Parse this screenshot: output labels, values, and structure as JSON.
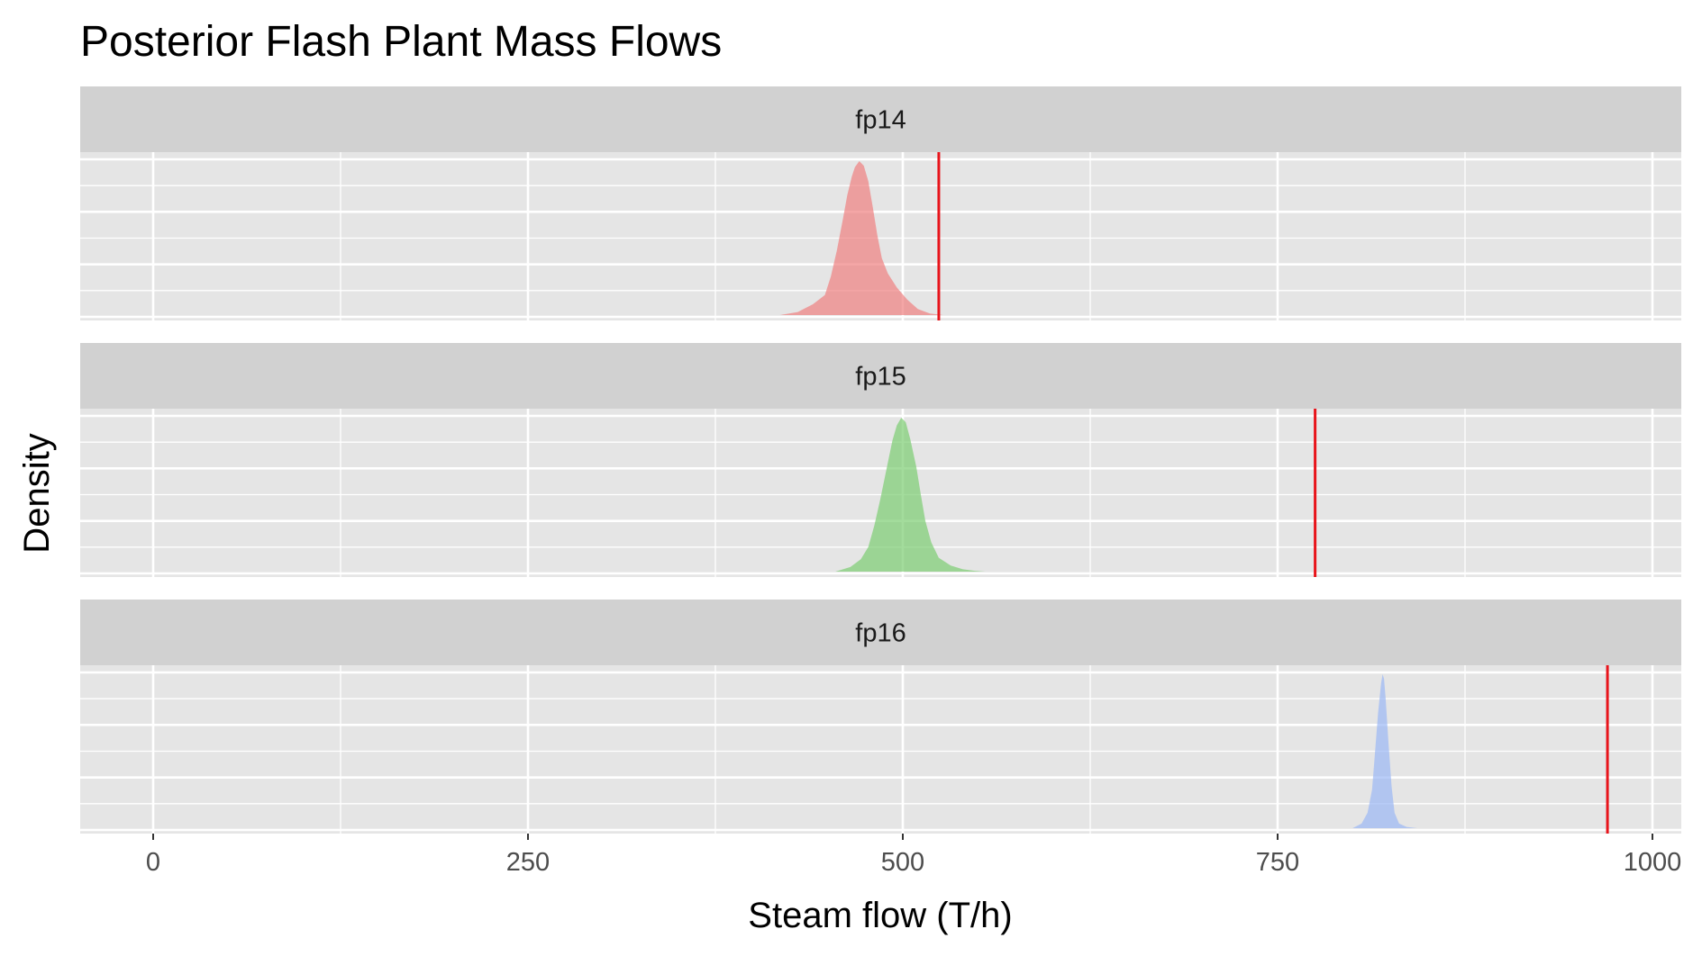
{
  "chart_data": {
    "type": "area",
    "title": "Posterior Flash Plant Mass Flows",
    "xlabel": "Steam flow (T/h)",
    "ylabel": "Density",
    "xlim": [
      -25,
      1025
    ],
    "x_ticks": [
      0,
      250,
      500,
      750,
      1000
    ],
    "x_tick_labels": [
      "0",
      "250",
      "500",
      "750",
      "1000"
    ],
    "grid": true,
    "legend": "none",
    "reference_line_color": "#e8141b",
    "panel_background": "#e5e5e5",
    "strip_background": "#d1d1d1",
    "panels": [
      {
        "label": "fp14",
        "fill": "#f08080",
        "reference_value": 524,
        "density": {
          "x": [
            418,
            430,
            440,
            448,
            452,
            456,
            460,
            463,
            466,
            468,
            471,
            474,
            477,
            480,
            483,
            486,
            490,
            496,
            503,
            510,
            518,
            527
          ],
          "y": [
            0.0,
            0.02,
            0.07,
            0.13,
            0.25,
            0.42,
            0.62,
            0.78,
            0.9,
            0.96,
            1.0,
            0.97,
            0.87,
            0.7,
            0.52,
            0.37,
            0.27,
            0.18,
            0.1,
            0.04,
            0.01,
            0.0
          ]
        }
      },
      {
        "label": "fp15",
        "fill": "#7ccd72",
        "reference_value": 775,
        "density": {
          "x": [
            455,
            465,
            472,
            477,
            481,
            485,
            489,
            493,
            496,
            499,
            502,
            505,
            509,
            512,
            515,
            519,
            524,
            532,
            540,
            548,
            555
          ],
          "y": [
            0.0,
            0.03,
            0.08,
            0.16,
            0.3,
            0.47,
            0.66,
            0.85,
            0.95,
            1.0,
            0.97,
            0.86,
            0.68,
            0.5,
            0.33,
            0.19,
            0.09,
            0.04,
            0.015,
            0.005,
            0.0
          ]
        }
      },
      {
        "label": "fp16",
        "fill": "#9bb8f5",
        "reference_value": 970,
        "density": {
          "x": [
            800,
            806,
            810,
            813,
            815,
            817,
            819,
            820,
            821,
            822,
            824,
            826,
            828,
            831,
            836,
            843
          ],
          "y": [
            0.0,
            0.03,
            0.1,
            0.25,
            0.5,
            0.75,
            0.94,
            1.0,
            0.97,
            0.85,
            0.55,
            0.27,
            0.1,
            0.03,
            0.008,
            0.0
          ]
        }
      }
    ]
  }
}
